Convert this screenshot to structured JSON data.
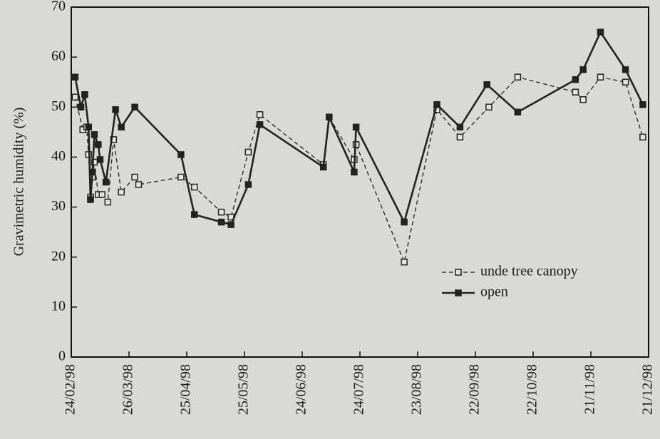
{
  "chart_data": {
    "type": "line",
    "y_label": "Gravimetric humidity (%)",
    "ylim": [
      0,
      70
    ],
    "yticks": [
      0,
      10,
      20,
      30,
      40,
      50,
      60,
      70
    ],
    "xlim": [
      "24/02/98",
      "21/12/98"
    ],
    "xticks": [
      "24/02/98",
      "26/03/98",
      "25/04/98",
      "25/05/98",
      "24/06/98",
      "24/07/98",
      "23/08/98",
      "22/09/98",
      "22/10/98",
      "21/11/98",
      "21/12/98"
    ],
    "legend": "lower right",
    "series": [
      {
        "name": "unde tree canopy",
        "color": "#222222",
        "style": "dashed",
        "marker": "open-square",
        "x": [
          "26/02/98",
          "02/03/98",
          "04/03/98",
          "05/03/98",
          "06/03/98",
          "07/03/98",
          "08/03/98",
          "10/03/98",
          "12/03/98",
          "15/03/98",
          "18/03/98",
          "22/03/98",
          "29/03/98",
          "31/03/98",
          "22/04/98",
          "29/04/98",
          "13/05/98",
          "18/05/98",
          "27/05/98",
          "02/06/98",
          "05/07/98",
          "08/07/98",
          "21/07/98",
          "22/07/98",
          "16/08/98",
          "02/09/98",
          "14/09/98",
          "29/09/98",
          "14/10/98",
          "13/11/98",
          "17/11/98",
          "26/11/98",
          "09/12/98",
          "18/12/98"
        ],
        "values": [
          52,
          45.5,
          46,
          40.5,
          32,
          36,
          39,
          32.5,
          32.5,
          31,
          43.5,
          33,
          36,
          34.5,
          36,
          34,
          29,
          28,
          41,
          48.5,
          38.5,
          48,
          39.5,
          42.5,
          19,
          49.5,
          44,
          50,
          56,
          53,
          51.5,
          56,
          55,
          44
        ]
      },
      {
        "name": "open",
        "color": "#222222",
        "style": "solid",
        "marker": "filled-square",
        "x": [
          "26/02/98",
          "01/03/98",
          "03/03/98",
          "05/03/98",
          "06/03/98",
          "07/03/98",
          "08/03/98",
          "10/03/98",
          "11/03/98",
          "14/03/98",
          "19/03/98",
          "22/03/98",
          "29/03/98",
          "22/04/98",
          "29/04/98",
          "13/05/98",
          "18/05/98",
          "27/05/98",
          "02/06/98",
          "05/07/98",
          "08/07/98",
          "21/07/98",
          "22/07/98",
          "16/08/98",
          "02/09/98",
          "14/09/98",
          "28/09/98",
          "14/10/98",
          "13/11/98",
          "17/11/98",
          "26/11/98",
          "09/12/98",
          "18/12/98"
        ],
        "values": [
          56,
          50,
          52.5,
          46,
          31.5,
          37,
          44.5,
          42.5,
          39.5,
          35,
          49.5,
          46,
          50,
          40.5,
          28.5,
          27,
          26.5,
          34.5,
          46.5,
          38,
          48,
          37,
          46,
          27,
          50.5,
          46,
          54.5,
          49,
          55.5,
          57.5,
          65,
          57.5,
          50.5
        ]
      }
    ]
  }
}
